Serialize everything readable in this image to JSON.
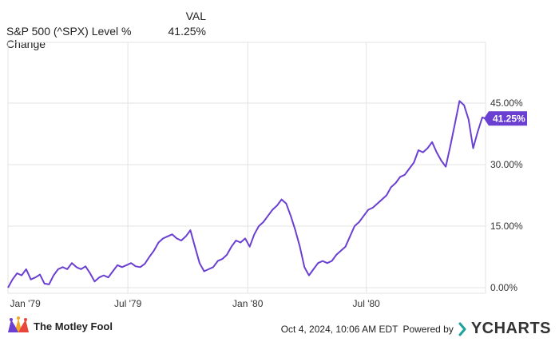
{
  "legend": {
    "header": "VAL",
    "series_label": "S&P 500 (^SPX) Level % Change",
    "series_value": "41.25%"
  },
  "chart_data": {
    "type": "line",
    "title": "",
    "xlabel": "",
    "ylabel": "",
    "y_unit": "%",
    "ylim": [
      0,
      50
    ],
    "y_ticks": [
      {
        "value": 0,
        "label": "0.00%"
      },
      {
        "value": 15,
        "label": "15.00%"
      },
      {
        "value": 30,
        "label": "30.00%"
      },
      {
        "value": 45,
        "label": "45.00%"
      }
    ],
    "xlim": [
      "1978-12-29",
      "1980-12-31"
    ],
    "x_ticks": [
      {
        "date": "1979-01-01",
        "label": "Jan '79"
      },
      {
        "date": "1979-07-01",
        "label": "Jul '79"
      },
      {
        "date": "1980-01-01",
        "label": "Jan '80"
      },
      {
        "date": "1980-07-01",
        "label": "Jul '80"
      }
    ],
    "grid": true,
    "line_color": "#6a3fd1",
    "end_label": "41.25%",
    "series": [
      {
        "name": "S&P 500 (^SPX) Level % Change",
        "points": [
          [
            "1978-12-29",
            0.0
          ],
          [
            "1979-01-05",
            2.0
          ],
          [
            "1979-01-12",
            3.5
          ],
          [
            "1979-01-19",
            3.0
          ],
          [
            "1979-01-26",
            4.5
          ],
          [
            "1979-02-02",
            2.0
          ],
          [
            "1979-02-09",
            2.5
          ],
          [
            "1979-02-16",
            3.2
          ],
          [
            "1979-02-23",
            1.0
          ],
          [
            "1979-03-02",
            0.8
          ],
          [
            "1979-03-09",
            3.0
          ],
          [
            "1979-03-16",
            4.5
          ],
          [
            "1979-03-23",
            5.0
          ],
          [
            "1979-03-30",
            4.5
          ],
          [
            "1979-04-06",
            6.0
          ],
          [
            "1979-04-13",
            5.0
          ],
          [
            "1979-04-20",
            4.5
          ],
          [
            "1979-04-27",
            5.2
          ],
          [
            "1979-05-04",
            3.5
          ],
          [
            "1979-05-11",
            1.5
          ],
          [
            "1979-05-18",
            2.5
          ],
          [
            "1979-05-25",
            3.0
          ],
          [
            "1979-06-01",
            2.5
          ],
          [
            "1979-06-08",
            4.0
          ],
          [
            "1979-06-15",
            5.5
          ],
          [
            "1979-06-22",
            5.0
          ],
          [
            "1979-06-29",
            5.5
          ],
          [
            "1979-07-06",
            6.0
          ],
          [
            "1979-07-13",
            5.2
          ],
          [
            "1979-07-20",
            5.0
          ],
          [
            "1979-07-27",
            5.8
          ],
          [
            "1979-08-03",
            7.5
          ],
          [
            "1979-08-10",
            9.0
          ],
          [
            "1979-08-17",
            11.0
          ],
          [
            "1979-08-24",
            12.0
          ],
          [
            "1979-08-31",
            12.5
          ],
          [
            "1979-09-07",
            13.0
          ],
          [
            "1979-09-14",
            12.0
          ],
          [
            "1979-09-21",
            11.5
          ],
          [
            "1979-09-28",
            12.5
          ],
          [
            "1979-10-05",
            14.0
          ],
          [
            "1979-10-12",
            10.0
          ],
          [
            "1979-10-19",
            6.0
          ],
          [
            "1979-10-26",
            4.0
          ],
          [
            "1979-11-02",
            4.5
          ],
          [
            "1979-11-09",
            5.0
          ],
          [
            "1979-11-16",
            6.5
          ],
          [
            "1979-11-23",
            7.0
          ],
          [
            "1979-11-30",
            8.0
          ],
          [
            "1979-12-07",
            10.0
          ],
          [
            "1979-12-14",
            11.5
          ],
          [
            "1979-12-21",
            11.0
          ],
          [
            "1979-12-28",
            12.0
          ],
          [
            "1980-01-04",
            10.0
          ],
          [
            "1980-01-11",
            13.0
          ],
          [
            "1980-01-18",
            15.0
          ],
          [
            "1980-01-25",
            16.0
          ],
          [
            "1980-02-01",
            17.5
          ],
          [
            "1980-02-08",
            19.0
          ],
          [
            "1980-02-15",
            20.0
          ],
          [
            "1980-02-22",
            21.5
          ],
          [
            "1980-02-29",
            20.5
          ],
          [
            "1980-03-07",
            17.5
          ],
          [
            "1980-03-14",
            14.0
          ],
          [
            "1980-03-21",
            10.0
          ],
          [
            "1980-03-28",
            5.0
          ],
          [
            "1980-04-04",
            3.0
          ],
          [
            "1980-04-11",
            4.5
          ],
          [
            "1980-04-18",
            6.0
          ],
          [
            "1980-04-25",
            6.5
          ],
          [
            "1980-05-02",
            6.0
          ],
          [
            "1980-05-09",
            6.5
          ],
          [
            "1980-05-16",
            8.0
          ],
          [
            "1980-05-23",
            9.0
          ],
          [
            "1980-05-30",
            10.0
          ],
          [
            "1980-06-06",
            12.5
          ],
          [
            "1980-06-13",
            15.0
          ],
          [
            "1980-06-20",
            16.0
          ],
          [
            "1980-06-27",
            17.5
          ],
          [
            "1980-07-04",
            19.0
          ],
          [
            "1980-07-11",
            19.5
          ],
          [
            "1980-07-18",
            20.5
          ],
          [
            "1980-07-25",
            21.5
          ],
          [
            "1980-08-01",
            22.5
          ],
          [
            "1980-08-08",
            24.5
          ],
          [
            "1980-08-15",
            25.5
          ],
          [
            "1980-08-22",
            27.0
          ],
          [
            "1980-08-29",
            27.5
          ],
          [
            "1980-09-05",
            29.0
          ],
          [
            "1980-09-12",
            30.5
          ],
          [
            "1980-09-19",
            33.5
          ],
          [
            "1980-09-26",
            33.0
          ],
          [
            "1980-10-03",
            34.0
          ],
          [
            "1980-10-10",
            35.5
          ],
          [
            "1980-10-17",
            33.0
          ],
          [
            "1980-10-24",
            31.0
          ],
          [
            "1980-10-31",
            29.5
          ],
          [
            "1980-11-07",
            34.5
          ],
          [
            "1980-11-14",
            40.0
          ],
          [
            "1980-11-21",
            45.5
          ],
          [
            "1980-11-28",
            44.5
          ],
          [
            "1980-12-05",
            41.0
          ],
          [
            "1980-12-12",
            34.0
          ],
          [
            "1980-12-19",
            38.0
          ],
          [
            "1980-12-26",
            41.5
          ],
          [
            "1980-12-31",
            41.25
          ]
        ]
      }
    ]
  },
  "footer": {
    "brand": "The Motley Fool",
    "brand_icon": "jester-hat-icon",
    "timestamp": "Oct 4, 2024, 10:06 AM EDT",
    "powered_by": "Powered by",
    "ycharts": "YCHARTS",
    "ycharts_color": "#1aa39a"
  }
}
